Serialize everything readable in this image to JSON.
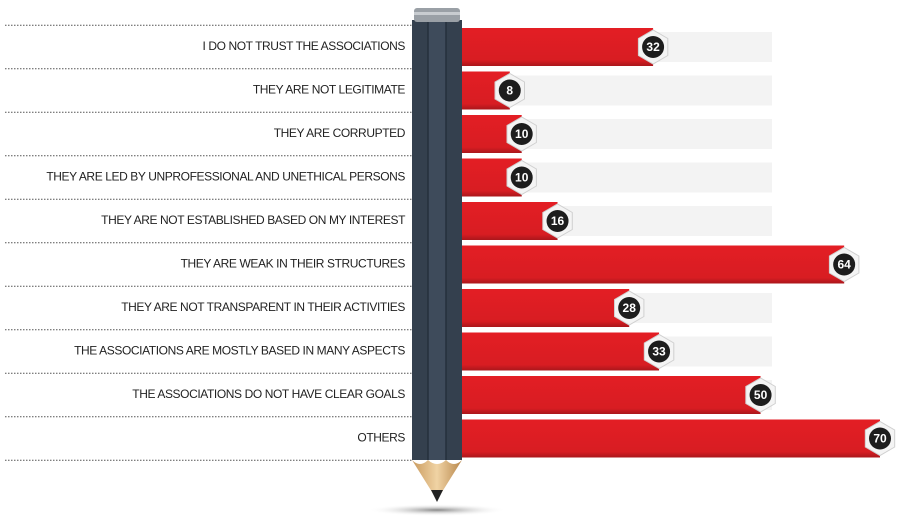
{
  "chart_data": {
    "type": "bar",
    "orientation": "horizontal",
    "categories": [
      "I DO NOT TRUST THE ASSOCIATIONS",
      "THEY ARE NOT LEGITIMATE",
      "THEY ARE CORRUPTED",
      "THEY ARE LED BY UNPROFESSIONAL AND  UNETHICAL PERSONS",
      "THEY ARE NOT ESTABLISHED BASED ON MY INTEREST",
      "THEY ARE WEAK IN THEIR STRUCTURES",
      "THEY ARE NOT TRANSPARENT IN THEIR ACTIVITIES",
      "THE ASSOCIATIONS ARE MOSTLY BASED IN MANY ASPECTS",
      "THE ASSOCIATIONS DO NOT HAVE CLEAR GOALS",
      "OTHERS"
    ],
    "values": [
      32,
      8,
      10,
      10,
      16,
      64,
      28,
      33,
      50,
      70
    ],
    "color": "#e31e24"
  }
}
